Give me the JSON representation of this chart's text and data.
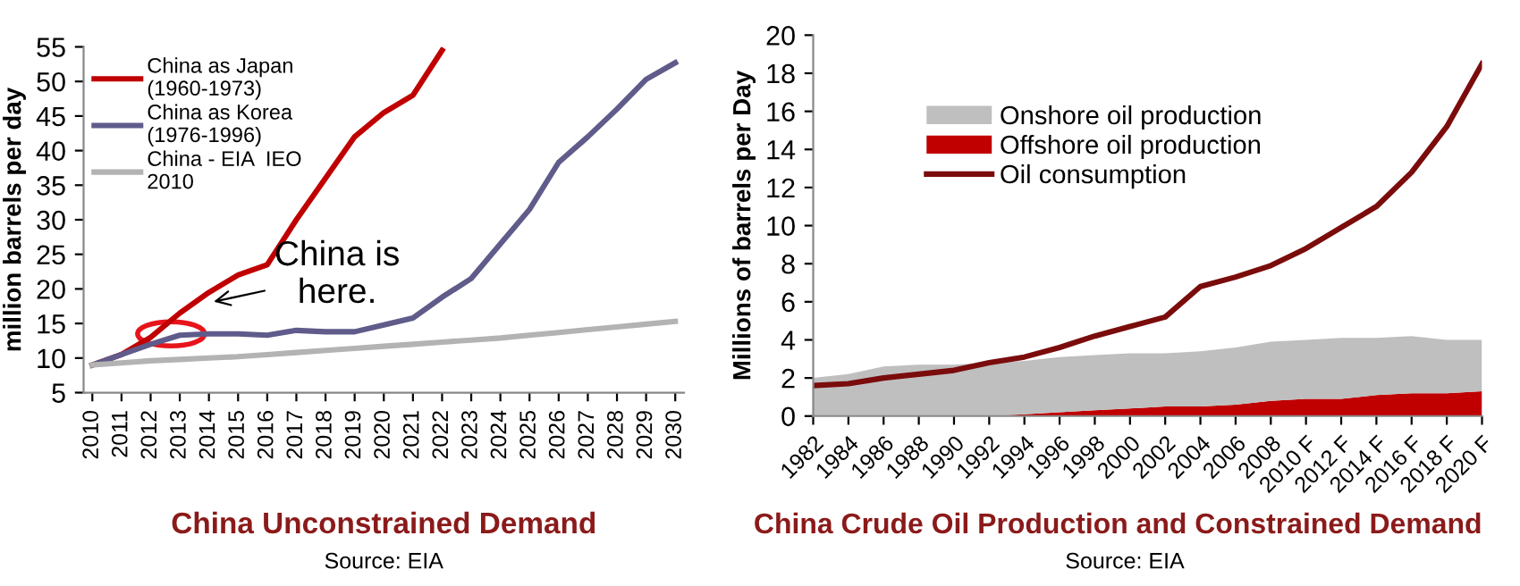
{
  "chart_data": [
    {
      "type": "line",
      "title": "China Unconstrained Demand",
      "ylabel": "million barrels per day",
      "categories": [
        "2010",
        "2011",
        "2012",
        "2013",
        "2014",
        "2015",
        "2016",
        "2017",
        "2018",
        "2019",
        "2020",
        "2021",
        "2022",
        "2023",
        "2024",
        "2025",
        "2026",
        "2027",
        "2028",
        "2029",
        "2030"
      ],
      "series": [
        {
          "name": "China as Japan\n(1960-1973)",
          "color": "#c00000",
          "values": [
            9,
            10.5,
            13,
            16.5,
            19.5,
            22,
            23.5,
            30,
            36,
            42,
            45.5,
            48,
            54.5,
            null,
            null,
            null,
            null,
            null,
            null,
            null,
            null
          ]
        },
        {
          "name": "China as Korea\n(1976-1996)",
          "color": "#5f5b8a",
          "values": [
            9,
            10.5,
            12,
            13.3,
            13.5,
            13.5,
            13.3,
            14,
            13.8,
            13.8,
            14.8,
            15.8,
            18.8,
            21.5,
            26.5,
            31.5,
            38.3,
            42,
            46,
            50.3,
            52.7
          ]
        },
        {
          "name": "China - EIA  IEO\n2010",
          "color": "#b3b3b3",
          "values": [
            9,
            9.3,
            9.6,
            9.8,
            10,
            10.2,
            10.5,
            10.8,
            11.1,
            11.4,
            11.7,
            12,
            12.3,
            12.6,
            12.9,
            13.3,
            13.7,
            14.1,
            14.5,
            14.9,
            15.3
          ]
        }
      ],
      "ylim": [
        5,
        55
      ],
      "yticks": [
        5,
        10,
        15,
        20,
        25,
        30,
        35,
        40,
        45,
        50,
        55
      ],
      "grid": false,
      "legend": "top left",
      "marker": "none",
      "annotations": [
        {
          "text": "China is\nhere.",
          "x": "2014",
          "y": 15
        },
        "Source: EIA"
      ]
    },
    {
      "type": "area",
      "stacked": true,
      "title": "China Crude Oil Production and Constrained Demand",
      "ylabel": "Millions of barrels per Day",
      "categories": [
        "1982",
        "1984",
        "1986",
        "1988",
        "1990",
        "1992",
        "1994",
        "1996",
        "1998",
        "2000",
        "2002",
        "2004",
        "2006",
        "2008",
        "2010 F",
        "2012 F",
        "2014 F",
        "2016 F",
        "2018 F",
        "2020 F"
      ],
      "series": [
        {
          "name": "Offshore oil production",
          "color": "#c00000",
          "values": [
            0,
            0,
            0,
            0,
            0,
            0,
            0.1,
            0.2,
            0.3,
            0.4,
            0.5,
            0.5,
            0.6,
            0.8,
            0.9,
            0.9,
            1.1,
            1.2,
            1.2,
            1.3
          ]
        },
        {
          "name": "Onshore oil production",
          "color": "#bfbfbf",
          "values": [
            2.0,
            2.2,
            2.6,
            2.7,
            2.7,
            2.8,
            2.8,
            2.9,
            2.9,
            2.9,
            2.8,
            2.9,
            3.0,
            3.1,
            3.1,
            3.2,
            3.0,
            3.0,
            2.8,
            2.7
          ]
        },
        {
          "name": "Oil consumption",
          "type": "line",
          "color": "#7b0c0c",
          "values": [
            1.6,
            1.7,
            2.0,
            2.2,
            2.4,
            2.8,
            3.1,
            3.6,
            4.2,
            4.7,
            5.2,
            6.8,
            7.3,
            7.9,
            8.8,
            9.9,
            11.0,
            12.8,
            15.2,
            18.5
          ]
        }
      ],
      "ylim": [
        0,
        20
      ],
      "yticks": [
        0,
        2,
        4,
        6,
        8,
        10,
        12,
        14,
        16,
        18,
        20
      ],
      "grid": false,
      "legend": "top left",
      "marker": "none",
      "annotations": [
        "Source: EIA"
      ]
    }
  ]
}
